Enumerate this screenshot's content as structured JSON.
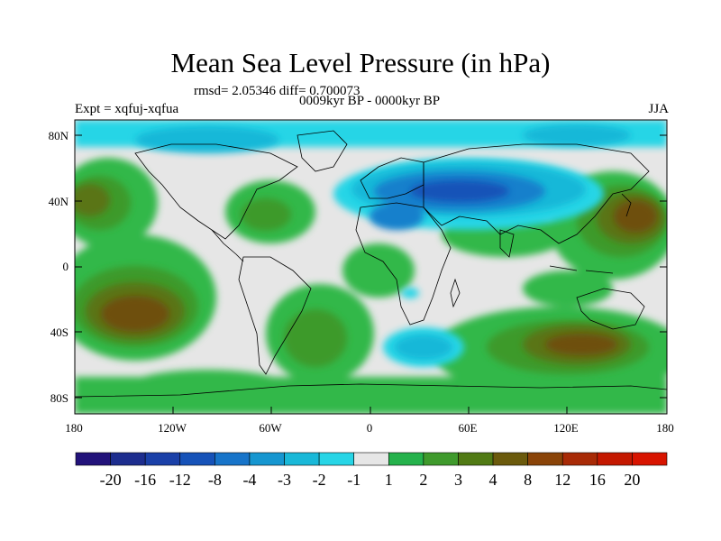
{
  "title": "Mean Sea Level Pressure (in hPa)",
  "stats": "rmsd= 2.05346 diff= 0.700073",
  "period": "0009kyr BP - 0000kyr BP",
  "experiment": "Expt = xqfuj-xqfua",
  "season": "JJA",
  "lat_labels": [
    "80N",
    "40N",
    "0",
    "40S",
    "80S"
  ],
  "lon_labels": [
    "180",
    "120W",
    "60W",
    "0",
    "60E",
    "120E",
    "180"
  ],
  "legend": {
    "labels": [
      "-20",
      "-16",
      "-12",
      "-8",
      "-4",
      "-3",
      "-2",
      "-1",
      "1",
      "2",
      "3",
      "4",
      "8",
      "12",
      "16",
      "20"
    ],
    "colors": [
      "#22127a",
      "#1d2d8e",
      "#1a40a8",
      "#1652b8",
      "#1774c9",
      "#1696d0",
      "#19b8d8",
      "#27d5e6",
      "#e6e6e6",
      "#25b24c",
      "#3f9a2c",
      "#507a14",
      "#6b5a0c",
      "#8a4408",
      "#a82a06",
      "#c41800",
      "#d81400"
    ]
  },
  "palette": {
    "land_outline": "#000000",
    "neutral": "#e6e6e6",
    "green_light": "#33b84a",
    "green_mid": "#3e9a2c",
    "olive": "#5a7414",
    "brown": "#6e5010",
    "cyan_light": "#27d5e6",
    "cyan": "#19b8d8",
    "blue": "#1680cc",
    "blue_dark": "#1652b8"
  }
}
